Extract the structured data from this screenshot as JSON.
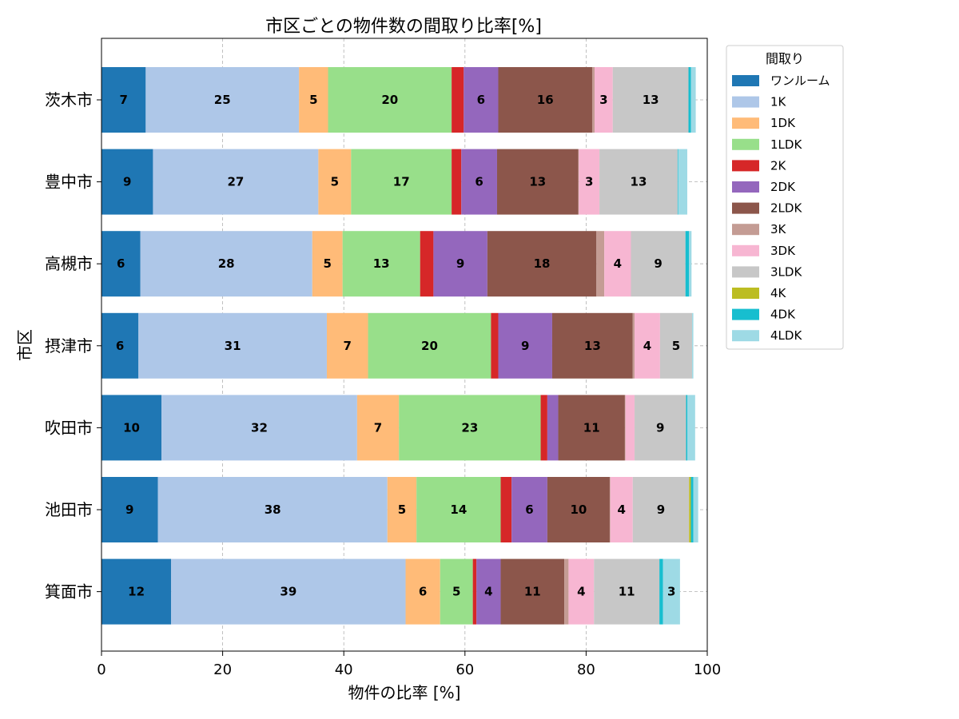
{
  "chart_data": {
    "type": "bar",
    "orientation": "horizontal",
    "stacked": true,
    "title": "市区ごとの物件数の間取り比率[%]",
    "xlabel": "物件の比率 [%]",
    "ylabel": "市区",
    "xlim": [
      0,
      100
    ],
    "xticks": [
      "0",
      "20",
      "40",
      "60",
      "80",
      "100"
    ],
    "grid": true,
    "legend_title": "間取り",
    "legend_position": "outside-right-top",
    "categories": [
      "茨木市",
      "豊中市",
      "高槻市",
      "摂津市",
      "吹田市",
      "池田市",
      "箕面市"
    ],
    "series": [
      {
        "name": "ワンルーム",
        "color": "#1f77b4",
        "values": [
          7.3,
          8.5,
          6.4,
          6.1,
          9.9,
          9.3,
          11.5
        ]
      },
      {
        "name": "1K",
        "color": "#aec7e8",
        "values": [
          25.3,
          27.3,
          28.4,
          31.1,
          32.3,
          37.9,
          38.7
        ]
      },
      {
        "name": "1DK",
        "color": "#ffbb78",
        "values": [
          4.8,
          5.4,
          5.0,
          6.8,
          6.9,
          4.8,
          5.7
        ]
      },
      {
        "name": "1LDK",
        "color": "#98df8a",
        "values": [
          20.4,
          16.6,
          12.8,
          20.3,
          23.4,
          13.9,
          5.4
        ]
      },
      {
        "name": "2K",
        "color": "#d62728",
        "values": [
          2.0,
          1.6,
          2.2,
          1.2,
          1.1,
          1.8,
          0.6
        ]
      },
      {
        "name": "2DK",
        "color": "#9467bd",
        "values": [
          5.7,
          5.9,
          8.9,
          8.9,
          1.8,
          5.9,
          4.0
        ]
      },
      {
        "name": "2LDK",
        "color": "#8c564b",
        "values": [
          15.5,
          13.4,
          18.0,
          13.3,
          11.0,
          10.3,
          10.5
        ]
      },
      {
        "name": "3K",
        "color": "#c49c94",
        "values": [
          0.4,
          0.1,
          1.3,
          0.3,
          0.1,
          0.1,
          0.7
        ]
      },
      {
        "name": "3DK",
        "color": "#f7b6d2",
        "values": [
          3.0,
          3.4,
          4.4,
          4.2,
          1.5,
          3.7,
          4.2
        ]
      },
      {
        "name": "3LDK",
        "color": "#c7c7c7",
        "values": [
          12.5,
          12.9,
          9.0,
          5.3,
          8.5,
          9.3,
          10.8
        ]
      },
      {
        "name": "4K",
        "color": "#bcbd22",
        "values": [
          0.0,
          0.0,
          0.0,
          0.0,
          0.0,
          0.3,
          0.0
        ]
      },
      {
        "name": "4DK",
        "color": "#17becf",
        "values": [
          0.4,
          0.1,
          0.6,
          0.0,
          0.2,
          0.4,
          0.6
        ]
      },
      {
        "name": "4LDK",
        "color": "#9edae5",
        "values": [
          0.8,
          1.5,
          0.4,
          0.2,
          1.3,
          0.8,
          2.8
        ]
      }
    ]
  }
}
